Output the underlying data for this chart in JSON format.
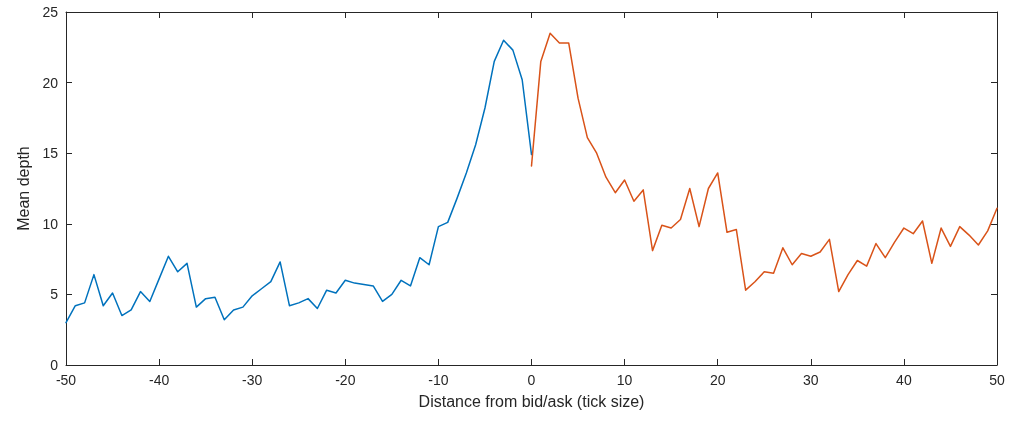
{
  "chart_data": {
    "type": "line",
    "xlabel": "Distance from bid/ask (tick size)",
    "ylabel": "Mean depth",
    "xlim": [
      -50,
      50
    ],
    "xticks": [
      -50,
      -40,
      -30,
      -20,
      -10,
      0,
      10,
      20,
      30,
      40,
      50
    ],
    "ylim": [
      0,
      25
    ],
    "yticks": [
      0,
      5,
      10,
      15,
      20,
      25
    ],
    "grid": false,
    "marker": "none",
    "line_style": "solid",
    "series": [
      {
        "color": "#0072bd",
        "x": [
          -50,
          -49,
          -48,
          -47,
          -46,
          -45,
          -44,
          -43,
          -42,
          -41,
          -40,
          -39,
          -38,
          -37,
          -36,
          -35,
          -34,
          -33,
          -32,
          -31,
          -30,
          -29,
          -28,
          -27,
          -26,
          -25,
          -24,
          -23,
          -22,
          -21,
          -20,
          -19,
          -18,
          -17,
          -16,
          -15,
          -14,
          -13,
          -12,
          -11,
          -10,
          -9,
          -8,
          -7,
          -6,
          -5,
          -4,
          -3,
          -2,
          -1,
          0
        ],
        "values": [
          3.0,
          4.2,
          4.4,
          6.4,
          4.2,
          5.1,
          3.5,
          3.9,
          5.2,
          4.5,
          6.1,
          7.7,
          6.6,
          7.2,
          4.1,
          4.7,
          4.8,
          3.2,
          3.9,
          4.1,
          4.9,
          5.4,
          5.9,
          7.3,
          4.2,
          4.4,
          4.7,
          4.0,
          5.3,
          5.1,
          6.0,
          5.8,
          5.7,
          5.6,
          4.5,
          5.0,
          6.0,
          5.6,
          7.6,
          7.1,
          9.8,
          10.1,
          11.8,
          13.6,
          15.6,
          18.2,
          21.5,
          23.0,
          22.3,
          20.2,
          14.9
        ]
      },
      {
        "color": "#d95319",
        "x": [
          0,
          1,
          2,
          3,
          4,
          5,
          6,
          7,
          8,
          9,
          10,
          11,
          12,
          13,
          14,
          15,
          16,
          17,
          18,
          19,
          20,
          21,
          22,
          23,
          24,
          25,
          26,
          27,
          28,
          29,
          30,
          31,
          32,
          33,
          34,
          35,
          36,
          37,
          38,
          39,
          40,
          41,
          42,
          43,
          44,
          45,
          46,
          47,
          48,
          49,
          50
        ],
        "values": [
          14.1,
          21.5,
          23.5,
          22.8,
          22.8,
          18.9,
          16.1,
          15.0,
          13.3,
          12.2,
          13.1,
          11.6,
          12.4,
          8.1,
          9.9,
          9.7,
          10.3,
          12.5,
          9.8,
          12.5,
          13.6,
          9.4,
          9.6,
          5.3,
          5.9,
          6.6,
          6.5,
          8.3,
          7.1,
          7.9,
          7.7,
          8.0,
          8.9,
          5.2,
          6.4,
          7.4,
          7.0,
          8.6,
          7.6,
          8.7,
          9.7,
          9.3,
          10.2,
          7.2,
          9.7,
          8.4,
          9.8,
          9.2,
          8.5,
          9.5,
          11.1
        ]
      }
    ]
  }
}
